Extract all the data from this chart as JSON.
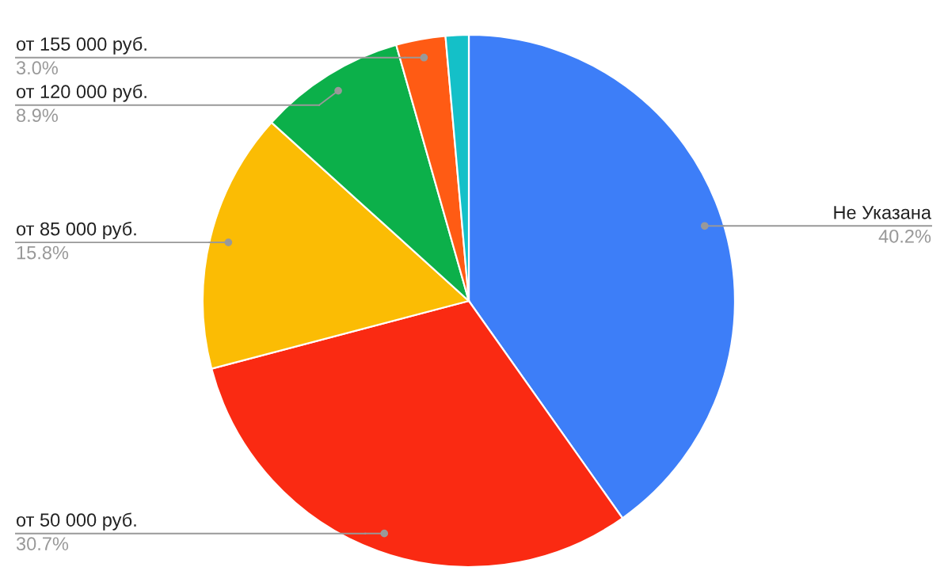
{
  "chart_data": {
    "type": "pie",
    "categories": [
      "Не Указана",
      "от 50 000 руб.",
      "от 85 000 руб.",
      "от 120 000 руб.",
      "от 155 000 руб.",
      null
    ],
    "values": [
      40.2,
      30.7,
      15.8,
      8.9,
      3.0,
      1.4
    ],
    "value_labels": [
      "40.2%",
      "30.7%",
      "15.8%",
      "8.9%",
      "3.0%",
      null
    ],
    "colors": [
      "#3d7ef8",
      "#fa2a12",
      "#fbbc04",
      "#0cb04a",
      "#ff5b14",
      "#14c0c8"
    ]
  }
}
